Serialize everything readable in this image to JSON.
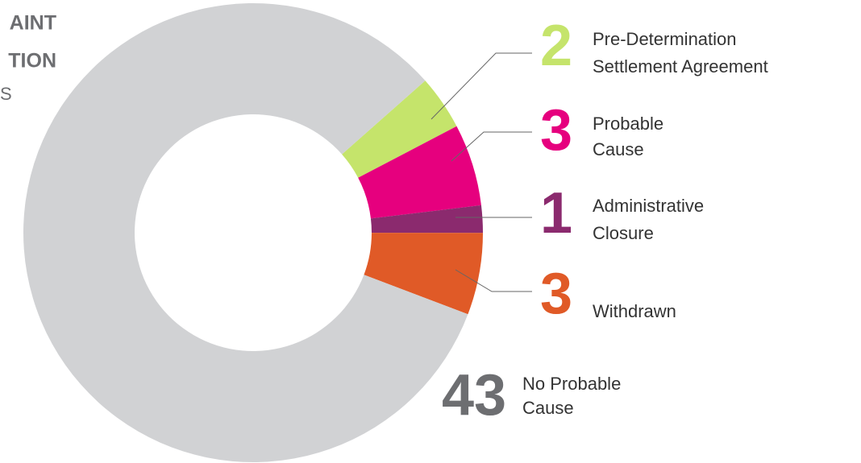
{
  "chart_data": {
    "type": "donut",
    "title_lines": [
      "AINT",
      "TION",
      "S"
    ],
    "categories": [
      [
        "Pre-Determination",
        "Settlement Agreement"
      ],
      [
        "Probable",
        "Cause"
      ],
      [
        "Administrative",
        "Closure"
      ],
      [
        "Withdrawn"
      ],
      [
        "No Probable",
        "Cause"
      ]
    ],
    "values": [
      2,
      3,
      1,
      3,
      43
    ],
    "colors": [
      "#c5e46b",
      "#e6007e",
      "#8b2a6e",
      "#e05a27",
      "#d1d2d4"
    ],
    "value_colors": [
      "#c5e46b",
      "#e6007e",
      "#8b2a6e",
      "#e05a27",
      "#6d6e71"
    ]
  }
}
